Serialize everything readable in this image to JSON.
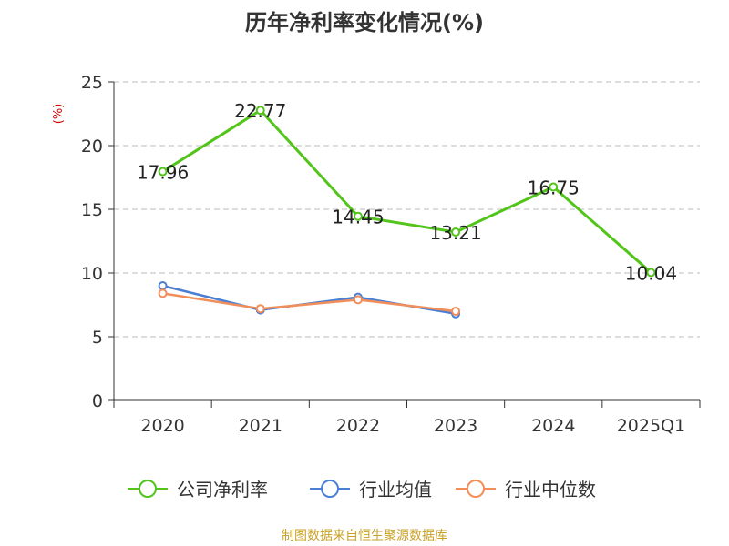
{
  "chart_data": {
    "type": "line",
    "title": "历年净利率变化情况(%)",
    "ylabel": "(%)",
    "xlabel": "",
    "ylim": [
      0,
      25
    ],
    "y_ticks": [
      0,
      5,
      10,
      15,
      20,
      25
    ],
    "grid": true,
    "legend_position": "bottom",
    "categories": [
      "2020",
      "2021",
      "2022",
      "2023",
      "2024",
      "2025Q1"
    ],
    "series": [
      {
        "name": "公司净利率",
        "color": "#52c41a",
        "values": [
          17.96,
          22.77,
          14.45,
          13.21,
          16.75,
          10.04
        ],
        "show_labels": true
      },
      {
        "name": "行业均值",
        "color": "#4a7fd4",
        "values": [
          9.0,
          7.1,
          8.1,
          6.8,
          null,
          null
        ],
        "show_labels": false
      },
      {
        "name": "行业中位数",
        "color": "#f28e5a",
        "values": [
          8.4,
          7.2,
          7.9,
          7.0,
          null,
          null
        ],
        "show_labels": false
      }
    ]
  },
  "source_note": "制图数据来自恒生聚源数据库"
}
